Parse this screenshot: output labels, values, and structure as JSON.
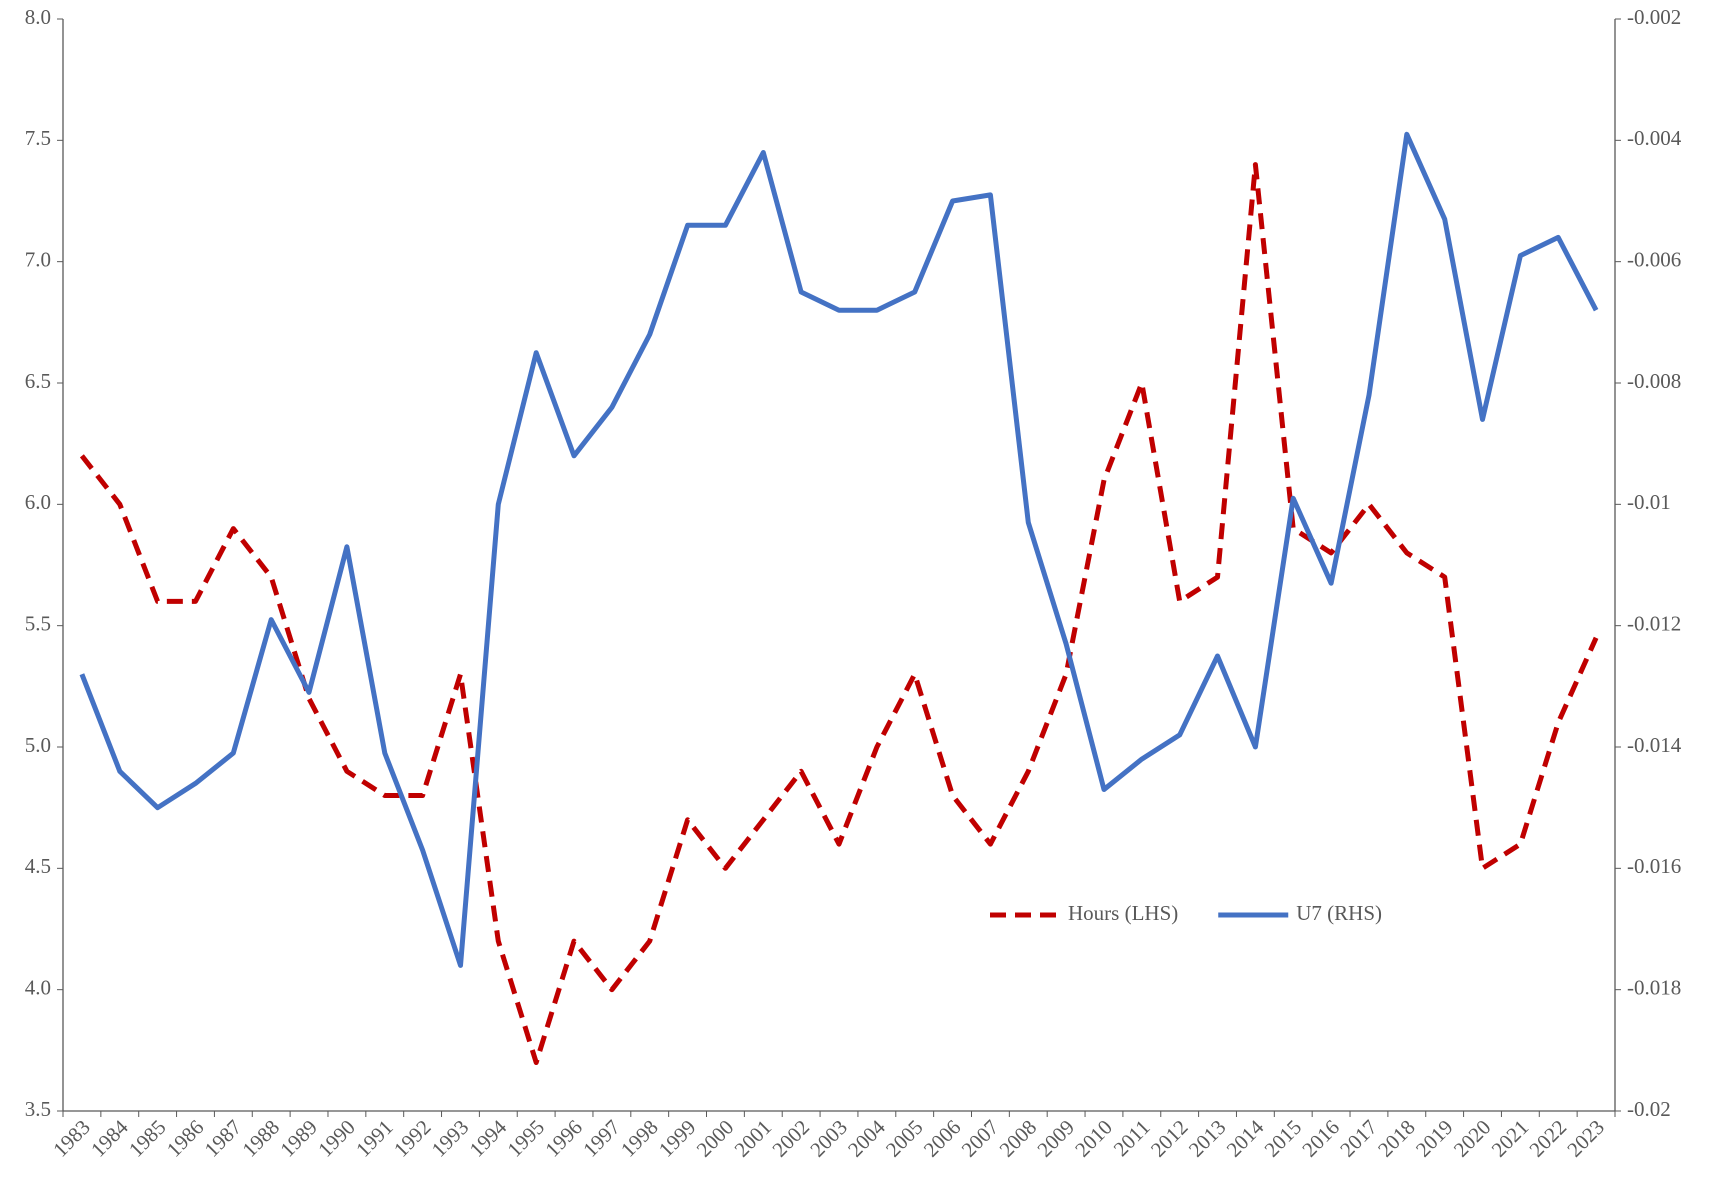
{
  "chart_data": {
    "type": "line",
    "categories": [
      "1983",
      "1984",
      "1985",
      "1986",
      "1987",
      "1988",
      "1989",
      "1990",
      "1991",
      "1992",
      "1993",
      "1994",
      "1995",
      "1996",
      "1997",
      "1998",
      "1999",
      "2000",
      "2001",
      "2002",
      "2003",
      "2004",
      "2005",
      "2006",
      "2007",
      "2008",
      "2009",
      "2010",
      "2011",
      "2012",
      "2013",
      "2014",
      "2015",
      "2016",
      "2017",
      "2018",
      "2019",
      "2020",
      "2021",
      "2022",
      "2023"
    ],
    "series": [
      {
        "name": "Hours (LHS)",
        "color": "#c00000",
        "dash": true,
        "values": [
          6.2,
          6.0,
          5.6,
          5.6,
          5.9,
          5.7,
          5.2,
          4.9,
          4.8,
          4.8,
          5.3,
          4.2,
          3.7,
          4.2,
          4.0,
          4.2,
          4.7,
          4.5,
          4.7,
          4.9,
          4.6,
          5.0,
          5.3,
          4.8,
          4.6,
          4.9,
          5.3,
          6.1,
          6.5,
          5.6,
          5.7,
          7.4,
          5.9,
          5.8,
          6.0,
          5.8,
          5.7,
          4.5,
          4.6,
          5.1,
          5.45
        ]
      },
      {
        "name": "U7 (RHS)",
        "color": "#4472c4",
        "axis": "y2",
        "values": [
          -0.0128,
          -0.0144,
          -0.015,
          -0.0146,
          -0.0141,
          -0.0119,
          -0.0131,
          -0.0107,
          -0.0141,
          -0.0157,
          -0.0176,
          -0.01,
          -0.0075,
          -0.0092,
          -0.0084,
          -0.0072,
          -0.0054,
          -0.0054,
          -0.0042,
          -0.0065,
          -0.0068,
          -0.0068,
          -0.0065,
          -0.005,
          -0.0049,
          -0.0103,
          -0.0123,
          -0.0147,
          -0.0142,
          -0.0138,
          -0.0125,
          -0.014,
          -0.0099,
          -0.0113,
          -0.0082,
          -0.0039,
          -0.0053,
          -0.0086,
          -0.0059,
          -0.0056,
          -0.0068
        ]
      }
    ],
    "ylim": [
      3.5,
      8.0
    ],
    "yticks": [
      {
        "value": 8.0,
        "label": "8.0"
      },
      7.5,
      {
        "value": 7.0,
        "label": "7.0"
      },
      6.5,
      {
        "value": 6.0,
        "label": "6.0"
      },
      5.5,
      {
        "value": 5.0,
        "label": "5.0"
      },
      4.5,
      {
        "value": 4.0,
        "label": "4.0"
      },
      3.5
    ],
    "y2lim": [
      -0.02,
      -0.002
    ],
    "y2ticks": [
      -0.002,
      -0.004,
      -0.006,
      -0.008,
      -0.01,
      -0.012,
      -0.014,
      -0.016,
      -0.018,
      -0.02
    ]
  }
}
